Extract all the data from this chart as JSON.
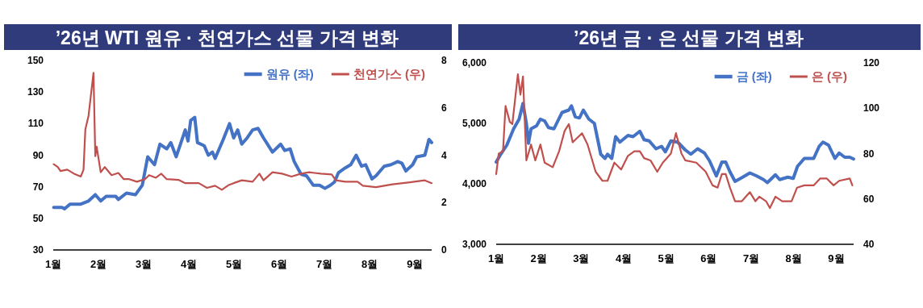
{
  "chart_data": [
    {
      "type": "line",
      "title": "’26년 WTI 원유 · 천연가스 선물 가격 변화",
      "legend": "top right",
      "xlim": [
        1,
        9.37
      ],
      "xticks": [
        {
          "value": 1,
          "label": "1월"
        },
        {
          "value": 2,
          "label": "2월"
        },
        {
          "value": 3,
          "label": "3월"
        },
        {
          "value": 4,
          "label": "4월"
        },
        {
          "value": 5,
          "label": "5월"
        },
        {
          "value": 6,
          "label": "6월"
        },
        {
          "value": 7,
          "label": "7월"
        },
        {
          "value": 8,
          "label": "8월"
        },
        {
          "value": 9,
          "label": "9월"
        }
      ],
      "ylim": [
        30,
        150
      ],
      "yticks": [
        30,
        50,
        70,
        90,
        110,
        130,
        150
      ],
      "y2lim": [
        0,
        8
      ],
      "y2ticks": [
        0,
        2,
        4,
        6,
        8
      ],
      "series": [
        {
          "name": "원유 (좌)",
          "color": "#4472c4",
          "x": [
            1.01,
            1.19,
            1.25,
            1.37,
            1.61,
            1.78,
            1.93,
            2.05,
            2.17,
            2.38,
            2.44,
            2.62,
            2.82,
            2.97,
            3.09,
            3.24,
            3.36,
            3.51,
            3.6,
            3.72,
            3.92,
            3.98,
            4.04,
            4.13,
            4.19,
            4.34,
            4.43,
            4.52,
            4.58,
            4.76,
            4.9,
            4.99,
            5.08,
            5.17,
            5.29,
            5.41,
            5.53,
            5.65,
            5.85,
            6.03,
            6.12,
            6.24,
            6.33,
            6.48,
            6.6,
            6.75,
            6.89,
            7.01,
            7.13,
            7.22,
            7.31,
            7.46,
            7.58,
            7.7,
            7.82,
            7.91,
            8.05,
            8.14,
            8.32,
            8.47,
            8.62,
            8.71,
            8.8,
            8.95,
            9.04,
            9.22,
            9.31,
            9.37
          ],
          "values": [
            57,
            57,
            56,
            59,
            59,
            61,
            65,
            61,
            64,
            64,
            62,
            66,
            65,
            71,
            89,
            84,
            97,
            94,
            98,
            89,
            106,
            99,
            112,
            114,
            98,
            96,
            90,
            92,
            88,
            100,
            110,
            101,
            106,
            97,
            101,
            106,
            107,
            101,
            92,
            97,
            93,
            94,
            86,
            78,
            77,
            71,
            71,
            69,
            71,
            73,
            79,
            82,
            84,
            90,
            83,
            84,
            75,
            77,
            83,
            84,
            86,
            85,
            80,
            84,
            89,
            90,
            100,
            98
          ]
        },
        {
          "name": "천연가스 (우)",
          "color": "#c0504d",
          "axis": "y2",
          "x": [
            1.01,
            1.1,
            1.16,
            1.31,
            1.46,
            1.61,
            1.67,
            1.71,
            1.78,
            1.89,
            1.93,
            1.96,
            2.05,
            2.14,
            2.29,
            2.44,
            2.56,
            2.68,
            2.85,
            3.03,
            3.12,
            3.27,
            3.39,
            3.51,
            3.77,
            3.92,
            4.22,
            4.4,
            4.58,
            4.73,
            4.87,
            4.99,
            5.17,
            5.41,
            5.56,
            5.65,
            5.85,
            6.06,
            6.27,
            6.48,
            6.66,
            6.78,
            6.92,
            7.16,
            7.25,
            7.46,
            7.73,
            7.85,
            8.14,
            8.5,
            8.98,
            9.22,
            9.37
          ],
          "values": [
            3.62,
            3.5,
            3.33,
            3.39,
            3.22,
            3.1,
            3.39,
            5.09,
            5.66,
            7.48,
            3.96,
            4.36,
            3.28,
            3.5,
            3.16,
            3.25,
            2.99,
            2.99,
            2.88,
            2.99,
            3.16,
            3.05,
            3.22,
            2.99,
            2.96,
            2.82,
            2.82,
            2.62,
            2.71,
            2.54,
            2.73,
            2.82,
            2.94,
            2.88,
            3.22,
            2.94,
            3.28,
            3.22,
            3.1,
            3.22,
            3.28,
            3.25,
            3.22,
            3.19,
            2.94,
            2.88,
            2.88,
            2.71,
            2.65,
            2.77,
            2.88,
            2.94,
            2.82
          ]
        }
      ]
    },
    {
      "type": "line",
      "title": "’26년 금 · 은 선물 가격 변화",
      "legend": "top right",
      "xlim": [
        1,
        9.41
      ],
      "xticks": [
        {
          "value": 1,
          "label": "1월"
        },
        {
          "value": 2,
          "label": "2월"
        },
        {
          "value": 3,
          "label": "3월"
        },
        {
          "value": 4,
          "label": "4월"
        },
        {
          "value": 5,
          "label": "5월"
        },
        {
          "value": 6,
          "label": "6월"
        },
        {
          "value": 7,
          "label": "7월"
        },
        {
          "value": 8,
          "label": "8월"
        },
        {
          "value": 9,
          "label": "9월"
        }
      ],
      "ylim": [
        3000,
        6000
      ],
      "yticks": [
        {
          "value": 3000,
          "label": "3,000"
        },
        {
          "value": 4000,
          "label": "4,000"
        },
        {
          "value": 5000,
          "label": "5,000"
        },
        {
          "value": 6000,
          "label": "6,000"
        }
      ],
      "y2lim": [
        40,
        120
      ],
      "y2ticks": [
        40,
        60,
        80,
        100,
        120
      ],
      "series": [
        {
          "name": "금 (좌)",
          "color": "#4472c4",
          "x": [
            1.0,
            1.09,
            1.25,
            1.41,
            1.54,
            1.63,
            1.71,
            1.76,
            1.82,
            1.95,
            2.04,
            2.14,
            2.23,
            2.36,
            2.45,
            2.55,
            2.71,
            2.77,
            2.86,
            2.96,
            3.05,
            3.18,
            3.31,
            3.46,
            3.56,
            3.62,
            3.72,
            3.81,
            3.91,
            4.1,
            4.22,
            4.38,
            4.48,
            4.6,
            4.76,
            4.89,
            4.98,
            5.11,
            5.27,
            5.45,
            5.58,
            5.74,
            5.9,
            6.02,
            6.18,
            6.31,
            6.4,
            6.5,
            6.62,
            6.75,
            6.97,
            7.13,
            7.29,
            7.38,
            7.57,
            7.67,
            7.86,
            7.99,
            8.09,
            8.25,
            8.47,
            8.6,
            8.69,
            8.82,
            8.97,
            9.07,
            9.2,
            9.32,
            9.41
          ],
          "values": [
            4360,
            4470,
            4640,
            4910,
            5070,
            5330,
            5000,
            4670,
            4910,
            4960,
            5070,
            5040,
            4930,
            4910,
            5040,
            5180,
            5220,
            5290,
            5110,
            5090,
            5220,
            5070,
            5000,
            4490,
            4420,
            4490,
            4420,
            4780,
            4690,
            4800,
            4780,
            4870,
            4730,
            4710,
            4580,
            4620,
            4530,
            4710,
            4690,
            4560,
            4490,
            4580,
            4510,
            4380,
            4130,
            4360,
            4360,
            4200,
            4040,
            4090,
            4180,
            4130,
            4070,
            4020,
            4150,
            4070,
            4110,
            4090,
            4290,
            4420,
            4420,
            4620,
            4690,
            4640,
            4420,
            4510,
            4440,
            4440,
            4410
          ]
        },
        {
          "name": "은 (우)",
          "color": "#c0504d",
          "axis": "y2",
          "x": [
            1.0,
            1.06,
            1.16,
            1.22,
            1.32,
            1.38,
            1.51,
            1.57,
            1.63,
            1.71,
            1.82,
            1.92,
            2.04,
            2.14,
            2.33,
            2.48,
            2.61,
            2.71,
            2.8,
            3.02,
            3.15,
            3.34,
            3.5,
            3.62,
            3.78,
            3.94,
            4.1,
            4.25,
            4.38,
            4.48,
            4.63,
            4.79,
            4.92,
            5.11,
            5.23,
            5.36,
            5.45,
            5.71,
            5.93,
            6.09,
            6.21,
            6.31,
            6.4,
            6.5,
            6.62,
            6.78,
            6.97,
            7.1,
            7.19,
            7.35,
            7.44,
            7.57,
            7.73,
            7.95,
            8.08,
            8.25,
            8.47,
            8.62,
            8.78,
            8.94,
            9.07,
            9.32,
            9.38
          ],
          "values": [
            71,
            80,
            81,
            101,
            94,
            93,
            115,
            106,
            114,
            77,
            84,
            77,
            84,
            76,
            74,
            81,
            90,
            93,
            85,
            89,
            84,
            72,
            68,
            68,
            76,
            73,
            79,
            81,
            81,
            78,
            77,
            72,
            76,
            80,
            89,
            80,
            77,
            76,
            72,
            66,
            65,
            71,
            71,
            65,
            59,
            59,
            63,
            59,
            61,
            59,
            56,
            61,
            59,
            59,
            65,
            66,
            66,
            69,
            69,
            66,
            68,
            69,
            66
          ]
        }
      ]
    }
  ]
}
